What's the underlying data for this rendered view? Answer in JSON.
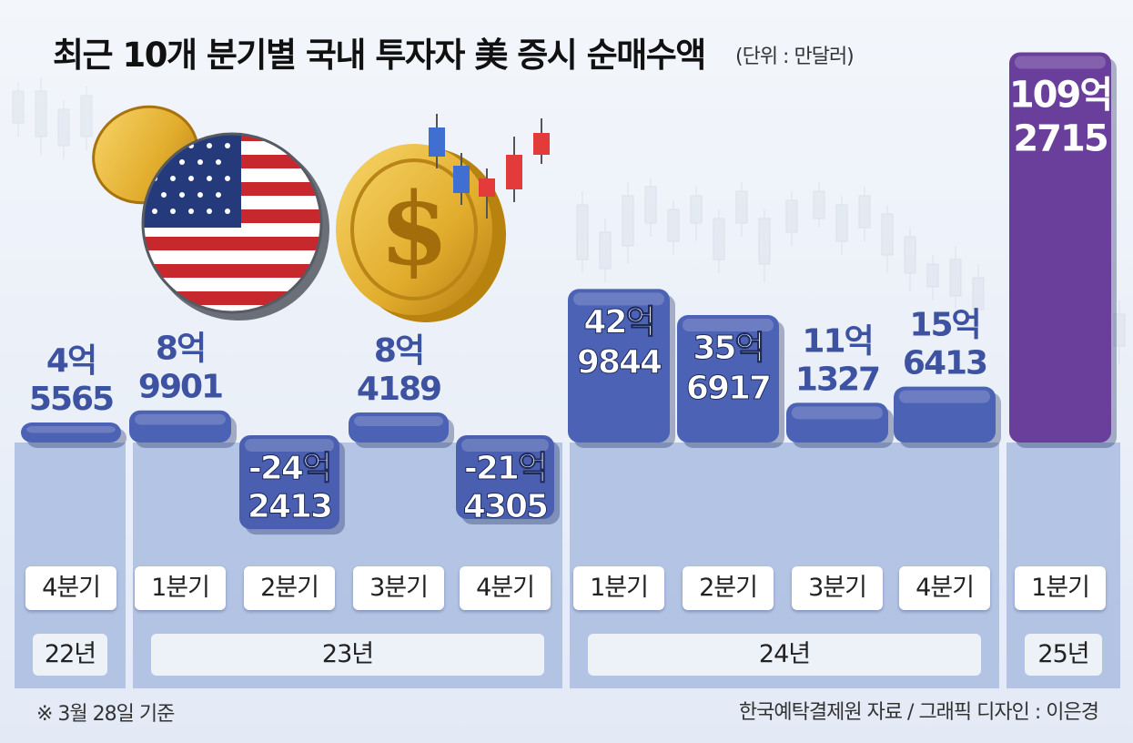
{
  "title": "최근 10개 분기별 국내 투자자 美 증시 순매수액",
  "unit": "(단위 : 만달러)",
  "footnote": "※ 3월 28일 기준",
  "source": "한국예탁결제원 자료 / 그래픽 디자인 : 이은경",
  "colors": {
    "positive_bar": "#4c62b4",
    "negative_bar": "#4a5fb0",
    "highlight_bar": "#6a3f9c",
    "label_text": "#3d52a0",
    "highlight_label_text": "#ffffff"
  },
  "chart_data": {
    "type": "bar",
    "categories": [
      "22년 4분기",
      "23년 1분기",
      "23년 2분기",
      "23년 3분기",
      "23년 4분기",
      "24년 1분기",
      "24년 2분기",
      "24년 3분기",
      "24년 4분기",
      "25년 1분기"
    ],
    "values": [
      45565,
      89901,
      -242413,
      84189,
      -214305,
      429844,
      356917,
      111327,
      156413,
      1092715
    ],
    "quarters": [
      "4분기",
      "1분기",
      "2분기",
      "3분기",
      "4분기",
      "1분기",
      "2분기",
      "3분기",
      "4분기",
      "1분기"
    ],
    "years": [
      {
        "label": "22년",
        "span": 1
      },
      {
        "label": "23년",
        "span": 4
      },
      {
        "label": "24년",
        "span": 4
      },
      {
        "label": "25년",
        "span": 1
      }
    ],
    "value_labels": [
      {
        "line1": "4억",
        "line2": "5565"
      },
      {
        "line1": "8억",
        "line2": "9901"
      },
      {
        "line1": "-24억",
        "line2": "2413"
      },
      {
        "line1": "8억",
        "line2": "4189"
      },
      {
        "line1": "-21억",
        "line2": "4305"
      },
      {
        "line1": "42억",
        "line2": "9844"
      },
      {
        "line1": "35억",
        "line2": "6917"
      },
      {
        "line1": "11억",
        "line2": "1327"
      },
      {
        "line1": "15억",
        "line2": "6413"
      },
      {
        "line1": "109억",
        "line2": "2715"
      }
    ],
    "highlight_index": 9,
    "title": "최근 10개 분기별 국내 투자자 美 증시 순매수액",
    "ylabel": "",
    "xlabel": "",
    "ylim": [
      -300000,
      1150000
    ],
    "grid": false
  }
}
